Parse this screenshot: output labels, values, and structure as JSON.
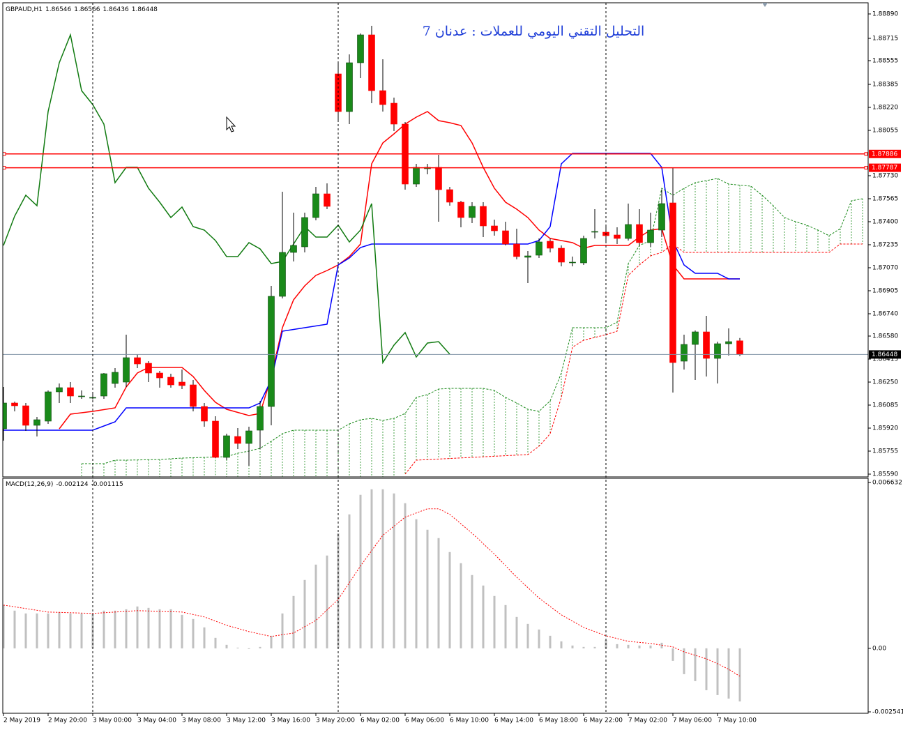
{
  "chart_data": [
    {
      "type": "candlestick",
      "title": "التحليل التقني اليومي للعملات : عدنان 7",
      "symbol": "GBPAUD,H1",
      "x_labels": [
        "2 May 2019",
        "2 May 20:00",
        "3 May 00:00",
        "3 May 04:00",
        "3 May 08:00",
        "3 May 12:00",
        "3 May 16:00",
        "3 May 20:00",
        "6 May 02:00",
        "6 May 06:00",
        "6 May 10:00",
        "6 May 14:00",
        "6 May 18:00",
        "6 May 22:00",
        "7 May 02:00",
        "7 May 06:00",
        "7 May 10:00"
      ],
      "candles": {
        "open": [
          1.85915,
          1.861,
          1.8608,
          1.8594,
          1.8597,
          1.8618,
          1.8621,
          1.8615,
          1.8614,
          1.8615,
          1.8624,
          1.8625,
          1.86425,
          1.86385,
          1.86315,
          1.86285,
          1.8625,
          1.8623,
          1.86075,
          1.8597,
          1.8571,
          1.8586,
          1.8581,
          1.85905,
          1.86075,
          1.86865,
          1.8718,
          1.8722,
          1.8743,
          1.876,
          1.8846,
          1.8819,
          1.8854,
          1.8874,
          1.8834,
          1.8825,
          1.881,
          1.8767,
          1.8778,
          1.8779,
          1.8763,
          1.8754,
          1.8743,
          1.8751,
          1.8737,
          1.87335,
          1.8724,
          1.87145,
          1.8716,
          1.8726,
          1.8721,
          1.8711,
          1.87105,
          1.8733,
          1.87325,
          1.87305,
          1.8728,
          1.8738,
          1.8725,
          1.8734,
          1.87535,
          1.864,
          1.8652,
          1.8661,
          1.8642,
          1.86525,
          1.86546
        ],
        "high": [
          1.86215,
          1.8611,
          1.861,
          1.86,
          1.8619,
          1.8624,
          1.8625,
          1.8619,
          1.86165,
          1.86315,
          1.8635,
          1.8659,
          1.8645,
          1.864,
          1.8633,
          1.8631,
          1.8634,
          1.86265,
          1.861,
          1.86005,
          1.8588,
          1.8592,
          1.8593,
          1.86115,
          1.8694,
          1.87615,
          1.87465,
          1.87465,
          1.8765,
          1.87675,
          1.8855,
          1.886,
          1.8875,
          1.88805,
          1.88565,
          1.8829,
          1.88115,
          1.87815,
          1.87815,
          1.8788,
          1.8765,
          1.8755,
          1.8754,
          1.8754,
          1.87415,
          1.874,
          1.8735,
          1.8719,
          1.8728,
          1.8728,
          1.8723,
          1.8715,
          1.873,
          1.8749,
          1.87365,
          1.8736,
          1.8753,
          1.8749,
          1.87465,
          1.8763,
          1.8779,
          1.8659,
          1.8662,
          1.86725,
          1.8654,
          1.86635,
          1.86566
        ],
        "low": [
          1.8583,
          1.8604,
          1.859,
          1.8586,
          1.8595,
          1.861,
          1.861,
          1.8613,
          1.86125,
          1.8613,
          1.8621,
          1.86215,
          1.8635,
          1.8625,
          1.8621,
          1.8621,
          1.862,
          1.8604,
          1.8593,
          1.85705,
          1.8569,
          1.8577,
          1.8565,
          1.8577,
          1.8594,
          1.8685,
          1.87115,
          1.8718,
          1.8741,
          1.8749,
          1.88115,
          1.881,
          1.8843,
          1.8825,
          1.8819,
          1.8805,
          1.8763,
          1.8765,
          1.8774,
          1.874,
          1.87515,
          1.8736,
          1.8739,
          1.8729,
          1.873,
          1.8723,
          1.8713,
          1.8696,
          1.8714,
          1.8718,
          1.8708,
          1.8708,
          1.8709,
          1.8728,
          1.8725,
          1.8724,
          1.87265,
          1.8723,
          1.8722,
          1.8729,
          1.86175,
          1.8634,
          1.86265,
          1.8629,
          1.8624,
          1.8644,
          1.86436
        ],
        "close": [
          1.861,
          1.8608,
          1.8594,
          1.8598,
          1.8618,
          1.8621,
          1.8615,
          1.8615,
          1.8614,
          1.8631,
          1.8632,
          1.86425,
          1.8638,
          1.86315,
          1.8628,
          1.8623,
          1.86225,
          1.86075,
          1.8597,
          1.8571,
          1.85865,
          1.8581,
          1.859,
          1.86075,
          1.86865,
          1.8718,
          1.8723,
          1.8743,
          1.876,
          1.8751,
          1.8819,
          1.8854,
          1.8874,
          1.8834,
          1.8824,
          1.881,
          1.8767,
          1.8779,
          1.8779,
          1.8763,
          1.8754,
          1.8743,
          1.8751,
          1.8737,
          1.87335,
          1.8724,
          1.8715,
          1.87155,
          1.87255,
          1.8721,
          1.8711,
          1.8711,
          1.8728,
          1.8733,
          1.873,
          1.8728,
          1.8738,
          1.8725,
          1.8734,
          1.8753,
          1.8639,
          1.8652,
          1.8661,
          1.8642,
          1.86525,
          1.8654,
          1.86448
        ]
      },
      "up_color": "#1a8a1a",
      "down_color": "#ff0000",
      "lines": [
        {
          "color": "#ff0000",
          "style": "solid",
          "x": [
            5,
            6,
            8,
            10,
            11,
            12,
            13,
            16,
            17,
            18,
            19,
            20,
            22,
            23,
            24,
            25,
            26,
            27,
            28,
            29,
            30,
            31,
            32,
            33,
            34,
            35,
            36,
            37,
            38,
            39,
            40,
            41,
            42,
            43,
            44,
            45,
            46,
            47,
            48,
            49,
            50,
            51,
            52,
            53,
            56,
            57,
            58,
            59,
            60,
            61,
            66
          ],
          "values": [
            1.85915,
            1.8602,
            1.8604,
            1.86065,
            1.86215,
            1.86315,
            1.86355,
            1.86355,
            1.8629,
            1.8619,
            1.86105,
            1.86055,
            1.8601,
            1.86025,
            1.8629,
            1.8664,
            1.8684,
            1.8694,
            1.87015,
            1.8705,
            1.8709,
            1.8715,
            1.8724,
            1.87815,
            1.87965,
            1.8803,
            1.881,
            1.8815,
            1.8819,
            1.88125,
            1.8811,
            1.8809,
            1.87965,
            1.8779,
            1.8764,
            1.8754,
            1.8749,
            1.8743,
            1.8734,
            1.8728,
            1.87265,
            1.8725,
            1.8721,
            1.8723,
            1.8723,
            1.8729,
            1.8734,
            1.8735,
            1.8709,
            1.8699,
            1.8699
          ]
        },
        {
          "color": "#0000ff",
          "style": "solid",
          "x": [
            0,
            8,
            10,
            11,
            22,
            23,
            24,
            25,
            27,
            29,
            30,
            31,
            32,
            33,
            47,
            48,
            49,
            50,
            51,
            58,
            59,
            60,
            61,
            62,
            64,
            65,
            66
          ],
          "values": [
            1.85905,
            1.85905,
            1.85965,
            1.86065,
            1.86065,
            1.861,
            1.86265,
            1.86615,
            1.8664,
            1.86665,
            1.8709,
            1.8714,
            1.87215,
            1.8724,
            1.8724,
            1.87265,
            1.87365,
            1.87815,
            1.8789,
            1.8789,
            1.8779,
            1.87265,
            1.8709,
            1.8703,
            1.8703,
            1.8699,
            1.8699
          ]
        },
        {
          "color": "#107a10",
          "style": "solid",
          "x": [
            0,
            1,
            2,
            3,
            4,
            5,
            6,
            7,
            8,
            9,
            10,
            11,
            12,
            13,
            14,
            15,
            16,
            17,
            18,
            19,
            20,
            21,
            22,
            23,
            24,
            25,
            26,
            27,
            28,
            29,
            30,
            31,
            32,
            33,
            34,
            35,
            36,
            37,
            38,
            39,
            40
          ],
          "values": [
            1.8723,
            1.8744,
            1.8759,
            1.87515,
            1.8819,
            1.8854,
            1.8874,
            1.8834,
            1.8824,
            1.881,
            1.8768,
            1.8779,
            1.8779,
            1.8764,
            1.8754,
            1.8743,
            1.87505,
            1.87365,
            1.8734,
            1.87265,
            1.8715,
            1.8715,
            1.8725,
            1.87205,
            1.871,
            1.87115,
            1.8724,
            1.87365,
            1.8729,
            1.8729,
            1.87375,
            1.87255,
            1.8734,
            1.8753,
            1.8639,
            1.86515,
            1.86605,
            1.8643,
            1.8653,
            1.8654,
            1.8645
          ]
        },
        {
          "color": "#1a8a1a",
          "style": "dashed",
          "x": [
            7,
            8,
            9,
            10,
            11,
            14,
            16,
            20,
            21,
            22,
            23,
            24,
            25,
            26,
            30,
            31,
            32,
            33,
            34,
            35,
            36,
            37,
            38,
            39,
            40,
            43,
            44,
            45,
            46,
            47,
            48,
            49,
            50,
            51,
            54,
            55,
            56,
            57,
            58,
            59,
            60,
            61,
            62,
            64,
            65,
            67,
            68,
            69,
            70,
            71,
            72,
            73,
            74,
            75,
            76,
            77
          ],
          "values": [
            1.85665,
            1.85665,
            1.85665,
            1.8569,
            1.8569,
            1.85695,
            1.85705,
            1.85715,
            1.8574,
            1.85755,
            1.85775,
            1.85825,
            1.8588,
            1.85905,
            1.85905,
            1.8595,
            1.8598,
            1.8599,
            1.85975,
            1.8599,
            1.86025,
            1.8614,
            1.8616,
            1.862,
            1.86205,
            1.86205,
            1.8619,
            1.8614,
            1.861,
            1.86055,
            1.8604,
            1.86115,
            1.86315,
            1.8664,
            1.8664,
            1.8668,
            1.871,
            1.8723,
            1.87265,
            1.8764,
            1.8759,
            1.8764,
            1.8768,
            1.8771,
            1.8767,
            1.87655,
            1.8759,
            1.87515,
            1.8743,
            1.874,
            1.87375,
            1.8734,
            1.873,
            1.8735,
            1.8755,
            1.87565
          ]
        },
        {
          "color": "#ff0000",
          "style": "dashed",
          "x": [
            36,
            37,
            47,
            48,
            49,
            50,
            51,
            52,
            54,
            55,
            56,
            57,
            58,
            59,
            60,
            61,
            74,
            75,
            77
          ],
          "values": [
            1.8559,
            1.8569,
            1.8573,
            1.8579,
            1.8588,
            1.8614,
            1.865,
            1.8655,
            1.8659,
            1.86615,
            1.87015,
            1.8709,
            1.87155,
            1.8718,
            1.8724,
            1.8718,
            1.8718,
            1.8724,
            1.8724
          ]
        }
      ],
      "hlines": [
        {
          "value": 1.87886,
          "color": "#ff0000"
        },
        {
          "value": 1.87787,
          "color": "#ff0000"
        }
      ],
      "ylim": [
        1.8559,
        1.8889
      ],
      "yticks": [
        {
          "value": 1.8889,
          "label": "1.88890"
        },
        1.88715,
        1.88555,
        1.88385,
        {
          "value": 1.8822,
          "label": "1.88220"
        },
        1.88055,
        {
          "value": 1.8773,
          "label": "1.87730"
        },
        1.87565,
        {
          "value": 1.874,
          "label": "1.87400"
        },
        1.87235,
        {
          "value": 1.8707,
          "label": "1.87070"
        },
        1.86905,
        {
          "value": 1.8674,
          "label": "1.86740"
        },
        {
          "value": 1.8658,
          "label": "1.86580"
        },
        1.86415,
        {
          "value": 1.8625,
          "label": "1.86250"
        },
        1.86085,
        {
          "value": 1.8592,
          "label": "1.85920"
        },
        1.85755,
        {
          "value": 1.8559,
          "label": "1.85590"
        }
      ]
    },
    {
      "type": "macd",
      "label": "MACD(12,26,9)",
      "histogram": [
        0.00173,
        0.001507,
        0.001395,
        0.001395,
        0.001395,
        0.001451,
        0.001395,
        0.001395,
        0.001395,
        0.001507,
        0.001507,
        0.001562,
        0.001674,
        0.001618,
        0.001562,
        0.001562,
        0.001339,
        0.001172,
        0.000837,
        0.000419,
        0.00014,
        2.8e-05,
        -2.8e-05,
        5.6e-05,
        0.000502,
        0.001395,
        0.002093,
        0.002734,
        0.003348,
        0.003711,
        0.004604,
        0.005357,
        0.006138,
        0.006361,
        0.006361,
        0.006194,
        0.005803,
        0.005162,
        0.004743,
        0.004408,
        0.00385,
        0.003404,
        0.00293,
        0.002511,
        0.002093,
        0.00173,
        0.001256,
        0.000977,
        0.000753,
        0.000502,
        0.000279,
        0.000112,
        5.6e-05,
        5.6e-05,
        0.000335,
        0.000167,
        0.00014,
        0.000112,
        0.000112,
        0.000223,
        -0.000502,
        -0.001032,
        -0.001311,
        -0.001674,
        -0.001869,
        -0.002009,
        -0.002124
      ],
      "histogram_color": "#c0c0c0",
      "signal": {
        "color": "#ff0000",
        "x": [
          0,
          4,
          8,
          12,
          16,
          18,
          20,
          22,
          24,
          26,
          28,
          30,
          32,
          34,
          36,
          38,
          39,
          40,
          42,
          44,
          46,
          48,
          50,
          52,
          54,
          56,
          58,
          60,
          61,
          62,
          63,
          64,
          65,
          66
        ],
        "values": [
          0.00173,
          0.001451,
          0.001395,
          0.001507,
          0.001451,
          0.001256,
          0.000921,
          0.00067,
          0.000474,
          0.000614,
          0.001116,
          0.001953,
          0.003292,
          0.00452,
          0.005245,
          0.00558,
          0.00558,
          0.005357,
          0.004604,
          0.003767,
          0.002846,
          0.002009,
          0.001339,
          0.000837,
          0.000502,
          0.000279,
          0.000195,
          5.6e-05,
          -0.00014,
          -0.000279,
          -0.000419,
          -0.000614,
          -0.000837,
          -0.001115
        ]
      },
      "ylim": [
        -0.002541,
        0.006632
      ],
      "yticks": [
        0.006632,
        {
          "value": 0,
          "label": "0.00"
        },
        -0.002541
      ]
    }
  ]
}
